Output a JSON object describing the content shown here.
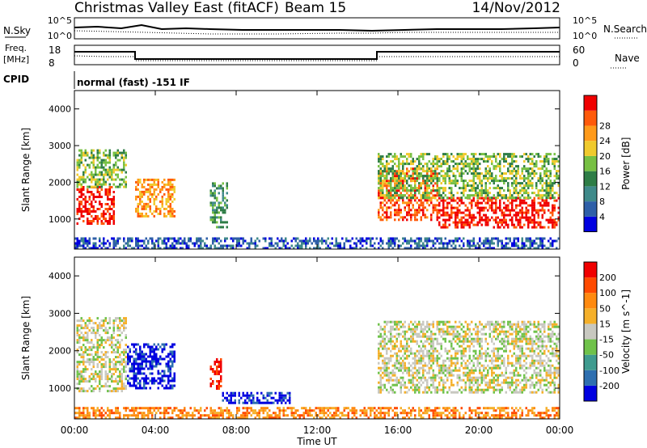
{
  "header": {
    "title": "Christmas Valley East (fitACF)",
    "beam": "Beam 15",
    "date": "14/Nov/2012"
  },
  "strips": {
    "nsky_label": "N.Sky",
    "nsky_ticks": [
      "10^5",
      "10^0"
    ],
    "nsearch_label": "N.Search",
    "nsearch_ticks": [
      "10^5",
      "10^0"
    ],
    "freq_label_1": "Freq.",
    "freq_label_2": "[MHz]",
    "freq_ticks": [
      "18",
      "8"
    ],
    "nave_label": "Nave",
    "nave_ticks": [
      "60",
      "0"
    ],
    "cpid_label": "CPID",
    "cpid_text": "normal (fast) -151 IF"
  },
  "chart_data": [
    {
      "type": "heatmap",
      "name": "power-panel",
      "xlabel": "Time UT",
      "ylabel": "Slant Range [km]",
      "x_ticks": [
        "00:00",
        "04:00",
        "08:00",
        "12:00",
        "16:00",
        "20:00",
        "00:00"
      ],
      "y_ticks": [
        "1000",
        "2000",
        "3000",
        "4000"
      ],
      "xlim_hours": [
        0,
        24
      ],
      "ylim_km": [
        180,
        4500
      ],
      "colorbar": {
        "label": "Power [dB]",
        "ticks": [
          "4",
          "8",
          "12",
          "16",
          "20",
          "24",
          "28"
        ],
        "colors": [
          "#0000e0",
          "#2e5fa8",
          "#3f8a8a",
          "#2e7d46",
          "#77c043",
          "#f0ca2d",
          "#ff9a1a",
          "#ff5a0a",
          "#f00000"
        ]
      },
      "regions": [
        {
          "t0": 0.1,
          "t1": 2.0,
          "r0": 900,
          "r1": 1900,
          "level": 8
        },
        {
          "t0": 0.1,
          "t1": 2.6,
          "r0": 1900,
          "r1": 2900,
          "level": 4
        },
        {
          "t0": 3.0,
          "t1": 5.0,
          "r0": 1100,
          "r1": 2100,
          "level": 6
        },
        {
          "t0": 6.7,
          "t1": 7.6,
          "r0": 800,
          "r1": 2000,
          "level": 3
        },
        {
          "t0": 15.0,
          "t1": 18.0,
          "r0": 1000,
          "r1": 2400,
          "level": 7
        },
        {
          "t0": 18.0,
          "t1": 24.0,
          "r0": 800,
          "r1": 1600,
          "level": 8
        },
        {
          "t0": 15.0,
          "t1": 24.0,
          "r0": 1600,
          "r1": 2800,
          "level": 4
        },
        {
          "t0": 0.0,
          "t1": 24.0,
          "r0": 180,
          "r1": 500,
          "level": 1
        }
      ]
    },
    {
      "type": "heatmap",
      "name": "velocity-panel",
      "xlabel": "Time UT",
      "ylabel": "Slant Range [km]",
      "x_ticks": [
        "00:00",
        "04:00",
        "08:00",
        "12:00",
        "16:00",
        "20:00",
        "00:00"
      ],
      "y_ticks": [
        "1000",
        "2000",
        "3000",
        "4000"
      ],
      "xlim_hours": [
        0,
        24
      ],
      "ylim_km": [
        180,
        4500
      ],
      "colorbar": {
        "label": "Velocity [m s^-1]",
        "ticks": [
          "200",
          "100",
          "50",
          "15",
          "-15",
          "-50",
          "-100",
          "-200"
        ],
        "colors": [
          "#0000e0",
          "#2e6fb0",
          "#3f9b8f",
          "#6fc24a",
          "#c8c8c0",
          "#f5b02a",
          "#ff8a10",
          "#ff4a00",
          "#f00000"
        ]
      },
      "regions": [
        {
          "t0": 0.1,
          "t1": 2.6,
          "r0": 900,
          "r1": 2900,
          "level": 4
        },
        {
          "t0": 2.6,
          "t1": 5.0,
          "r0": 1000,
          "r1": 2200,
          "level": 0
        },
        {
          "t0": 6.7,
          "t1": 7.3,
          "r0": 1000,
          "r1": 1800,
          "level": 8
        },
        {
          "t0": 7.3,
          "t1": 10.7,
          "r0": 600,
          "r1": 900,
          "level": 0
        },
        {
          "t0": 15.0,
          "t1": 24.0,
          "r0": 900,
          "r1": 2800,
          "level": 4
        },
        {
          "t0": 0.0,
          "t1": 24.0,
          "r0": 180,
          "r1": 500,
          "level": 6
        }
      ]
    }
  ]
}
